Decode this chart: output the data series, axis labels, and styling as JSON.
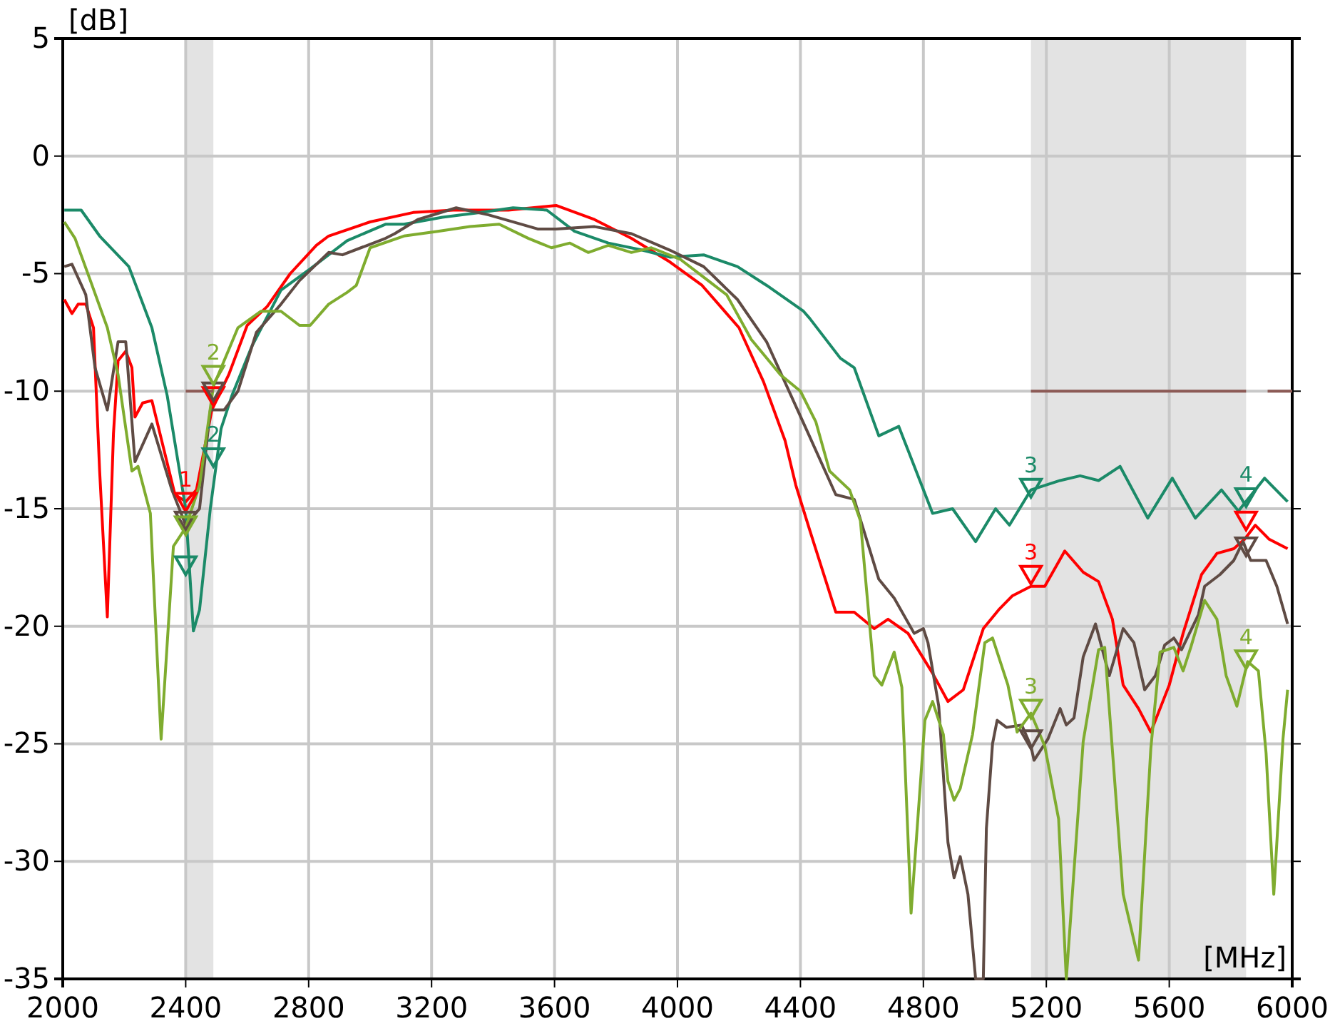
{
  "chart_data": {
    "type": "line",
    "xlabel": "[MHz]",
    "ylabel": "[dB]",
    "xlim": [
      2000,
      6000
    ],
    "xticks": [
      2000,
      2400,
      2800,
      3200,
      3600,
      4000,
      4400,
      4800,
      5200,
      5600,
      6000
    ],
    "ylim": [
      -35,
      5
    ],
    "yticks": [
      5,
      0,
      -5,
      -10,
      -15,
      -20,
      -25,
      -30,
      -35
    ],
    "grid": true,
    "line_style": "solid",
    "annotations": [
      {
        "text": "1",
        "x": 2400,
        "y": -14.6
      },
      {
        "text": "2",
        "x": 2490,
        "y": -9.2
      },
      {
        "text": "2",
        "x": 2490,
        "y": -12.7
      },
      {
        "text": "3",
        "x": 5150,
        "y": -14.0
      },
      {
        "text": "3",
        "x": 5150,
        "y": -17.7
      },
      {
        "text": "3",
        "x": 5150,
        "y": -23.4
      },
      {
        "text": "4",
        "x": 5850,
        "y": -14.4
      },
      {
        "text": "4",
        "x": 5850,
        "y": -21.3
      }
    ],
    "bands": [
      {
        "axis": "x",
        "from": 2400,
        "to": 2490,
        "color": "#e3e3e3"
      },
      {
        "axis": "x",
        "from": 5150,
        "to": 5850,
        "color": "#e3e3e3"
      }
    ],
    "series": [
      {
        "color": "#ff0000",
        "x": [
          2005,
          2030,
          2050,
          2075,
          2100,
          2120,
          2145,
          2165,
          2180,
          2205,
          2225,
          2235,
          2260,
          2290,
          2365,
          2400,
          2435,
          2485,
          2540,
          2600,
          2665,
          2740,
          2825,
          2865,
          3000,
          3140,
          3270,
          3450,
          3605,
          3730,
          3850,
          3975,
          4080,
          4200,
          4280,
          4350,
          4385,
          4430,
          4515,
          4575,
          4640,
          4685,
          4750,
          4830,
          4880,
          4930,
          4995,
          5045,
          5090,
          5150,
          5195,
          5260,
          5320,
          5370,
          5415,
          5450,
          5500,
          5540,
          5600,
          5645,
          5705,
          5755,
          5810,
          5845,
          5880,
          5925,
          5985
        ],
        "values": [
          -6.1,
          -6.7,
          -6.3,
          -6.3,
          -7.3,
          -13.4,
          -19.6,
          -11.8,
          -8.7,
          -8.3,
          -9.0,
          -11.1,
          -10.5,
          -10.4,
          -14.4,
          -14.7,
          -14.2,
          -10.8,
          -9.3,
          -7.2,
          -6.4,
          -5.0,
          -3.8,
          -3.4,
          -2.8,
          -2.4,
          -2.3,
          -2.3,
          -2.1,
          -2.7,
          -3.5,
          -4.5,
          -5.5,
          -7.3,
          -9.6,
          -12.1,
          -14.0,
          -15.9,
          -19.4,
          -19.4,
          -20.1,
          -19.7,
          -20.3,
          -22.0,
          -23.2,
          -22.7,
          -20.1,
          -19.3,
          -18.7,
          -18.3,
          -18.3,
          -16.8,
          -17.7,
          -18.1,
          -19.7,
          -22.5,
          -23.5,
          -24.5,
          -22.5,
          -20.3,
          -17.8,
          -16.9,
          -16.7,
          -16.3,
          -15.7,
          -16.3,
          -16.7
        ]
      },
      {
        "color": "#1b8a68",
        "x": [
          2005,
          2060,
          2120,
          2215,
          2290,
          2340,
          2400,
          2425,
          2445,
          2480,
          2515,
          2550,
          2615,
          2710,
          2805,
          2925,
          3050,
          3110,
          3235,
          3360,
          3465,
          3575,
          3665,
          3775,
          3885,
          3975,
          4085,
          4195,
          4290,
          4410,
          4430,
          4530,
          4575,
          4655,
          4720,
          4830,
          4895,
          4970,
          5035,
          5080,
          5150,
          5245,
          5310,
          5370,
          5440,
          5530,
          5610,
          5685,
          5770,
          5825,
          5910,
          5985
        ],
        "values": [
          -2.3,
          -2.3,
          -3.4,
          -4.7,
          -7.3,
          -10.2,
          -15.0,
          -20.2,
          -19.3,
          -15.0,
          -11.6,
          -10.2,
          -8.1,
          -5.7,
          -4.8,
          -3.6,
          -2.9,
          -2.9,
          -2.6,
          -2.4,
          -2.2,
          -2.3,
          -3.2,
          -3.7,
          -4.0,
          -4.3,
          -4.2,
          -4.7,
          -5.5,
          -6.6,
          -6.9,
          -8.6,
          -9.0,
          -11.9,
          -11.5,
          -15.2,
          -15.0,
          -16.4,
          -15.0,
          -15.7,
          -14.2,
          -13.8,
          -13.6,
          -13.8,
          -13.2,
          -15.4,
          -13.7,
          -15.4,
          -14.2,
          -15.1,
          -13.7,
          -14.7
        ]
      },
      {
        "color": "#5f4b44",
        "x": [
          2005,
          2030,
          2075,
          2105,
          2145,
          2180,
          2205,
          2235,
          2290,
          2355,
          2400,
          2445,
          2480,
          2525,
          2570,
          2630,
          2710,
          2770,
          2865,
          2910,
          3050,
          3080,
          3155,
          3280,
          3385,
          3545,
          3605,
          3730,
          3850,
          3975,
          4085,
          4195,
          4290,
          4415,
          4515,
          4575,
          4655,
          4705,
          4770,
          4800,
          4815,
          4850,
          4880,
          4900,
          4920,
          4945,
          4970,
          4995,
          5005,
          5025,
          5040,
          5070,
          5120,
          5150,
          5160,
          5205,
          5245,
          5265,
          5290,
          5320,
          5360,
          5405,
          5450,
          5485,
          5520,
          5555,
          5585,
          5615,
          5640,
          5695,
          5715,
          5765,
          5810,
          5840,
          5865,
          5890,
          5915,
          5950,
          5985
        ],
        "values": [
          -4.7,
          -4.6,
          -5.9,
          -9.0,
          -10.8,
          -7.9,
          -7.9,
          -13.0,
          -11.4,
          -14.2,
          -15.7,
          -15.0,
          -10.8,
          -10.8,
          -10.0,
          -7.5,
          -6.3,
          -5.3,
          -4.1,
          -4.2,
          -3.5,
          -3.3,
          -2.7,
          -2.2,
          -2.5,
          -3.1,
          -3.1,
          -3.0,
          -3.3,
          -4.0,
          -4.7,
          -6.1,
          -7.9,
          -11.5,
          -14.4,
          -14.6,
          -18.0,
          -18.8,
          -20.3,
          -20.1,
          -20.7,
          -23.4,
          -29.2,
          -30.7,
          -29.8,
          -31.4,
          -35,
          -35,
          -28.6,
          -25.0,
          -24.0,
          -24.3,
          -24.2,
          -25.1,
          -25.7,
          -24.8,
          -23.5,
          -24.2,
          -23.9,
          -21.3,
          -19.9,
          -22.1,
          -20.1,
          -20.7,
          -22.7,
          -22.1,
          -20.8,
          -20.5,
          -21.0,
          -19.5,
          -18.3,
          -17.8,
          -17.2,
          -16.4,
          -17.2,
          -17.2,
          -17.2,
          -18.3,
          -19.9
        ]
      },
      {
        "color": "#7fac2f",
        "x": [
          2005,
          2040,
          2090,
          2145,
          2180,
          2225,
          2245,
          2285,
          2320,
          2360,
          2400,
          2445,
          2490,
          2570,
          2645,
          2710,
          2770,
          2805,
          2865,
          2925,
          2955,
          3000,
          3110,
          3220,
          3325,
          3420,
          3515,
          3590,
          3650,
          3710,
          3775,
          3850,
          3915,
          4010,
          4100,
          4160,
          4240,
          4335,
          4400,
          4450,
          4495,
          4560,
          4595,
          4640,
          4665,
          4705,
          4730,
          4760,
          4805,
          4830,
          4865,
          4880,
          4900,
          4920,
          4960,
          5000,
          5025,
          5075,
          5105,
          5150,
          5195,
          5240,
          5265,
          5320,
          5370,
          5390,
          5450,
          5500,
          5540,
          5570,
          5615,
          5645,
          5670,
          5715,
          5755,
          5785,
          5820,
          5855,
          5890,
          5915,
          5940,
          5970,
          5985
        ],
        "values": [
          -2.8,
          -3.5,
          -5.3,
          -7.3,
          -9.3,
          -13.4,
          -13.2,
          -15.2,
          -24.8,
          -16.6,
          -15.8,
          -14.0,
          -9.8,
          -7.3,
          -6.6,
          -6.6,
          -7.2,
          -7.2,
          -6.3,
          -5.8,
          -5.5,
          -3.9,
          -3.4,
          -3.2,
          -3.0,
          -2.9,
          -3.5,
          -3.9,
          -3.7,
          -4.1,
          -3.8,
          -4.1,
          -3.9,
          -4.4,
          -5.3,
          -5.9,
          -7.8,
          -9.3,
          -10.0,
          -11.3,
          -13.4,
          -14.2,
          -15.5,
          -22.1,
          -22.5,
          -21.1,
          -22.6,
          -32.2,
          -24.0,
          -23.2,
          -24.6,
          -26.6,
          -27.4,
          -26.9,
          -24.6,
          -20.7,
          -20.5,
          -22.5,
          -24.5,
          -23.7,
          -25.1,
          -28.2,
          -35,
          -24.9,
          -21.0,
          -20.9,
          -31.4,
          -34.2,
          -25.2,
          -21.1,
          -20.9,
          -21.9,
          -20.9,
          -18.9,
          -19.7,
          -22.1,
          -23.4,
          -21.5,
          -21.9,
          -25.4,
          -31.4,
          -24.8,
          -22.7
        ]
      },
      {
        "color": "#8c5a55",
        "x": [
          2400,
          2490,
          2491,
          5150,
          5850,
          5851,
          5920,
          6000
        ],
        "values": [
          -10,
          -10,
          null,
          -10,
          -10,
          null,
          -10,
          -10
        ]
      },
      {
        "type": "scatter",
        "marker": "triangle",
        "color": "#ff0000",
        "x": [
          2400,
          2490,
          5150,
          5850
        ],
        "values": [
          -14.6,
          -10.1,
          -17.7,
          -15.4
        ]
      },
      {
        "type": "scatter",
        "marker": "triangle",
        "color": "#1b8a68",
        "x": [
          2400,
          2490,
          5150,
          5850
        ],
        "values": [
          -17.3,
          -12.7,
          -14.0,
          -14.4
        ]
      },
      {
        "type": "scatter",
        "marker": "triangle",
        "color": "#5f4b44",
        "x": [
          2400,
          2490,
          5150,
          5850
        ],
        "values": [
          -15.4,
          -9.9,
          -24.7,
          -16.5
        ]
      },
      {
        "type": "scatter",
        "marker": "triangle",
        "color": "#7fac2f",
        "x": [
          2400,
          2490,
          5150,
          5850
        ],
        "values": [
          -15.6,
          -9.2,
          -23.4,
          -21.3
        ]
      }
    ]
  }
}
